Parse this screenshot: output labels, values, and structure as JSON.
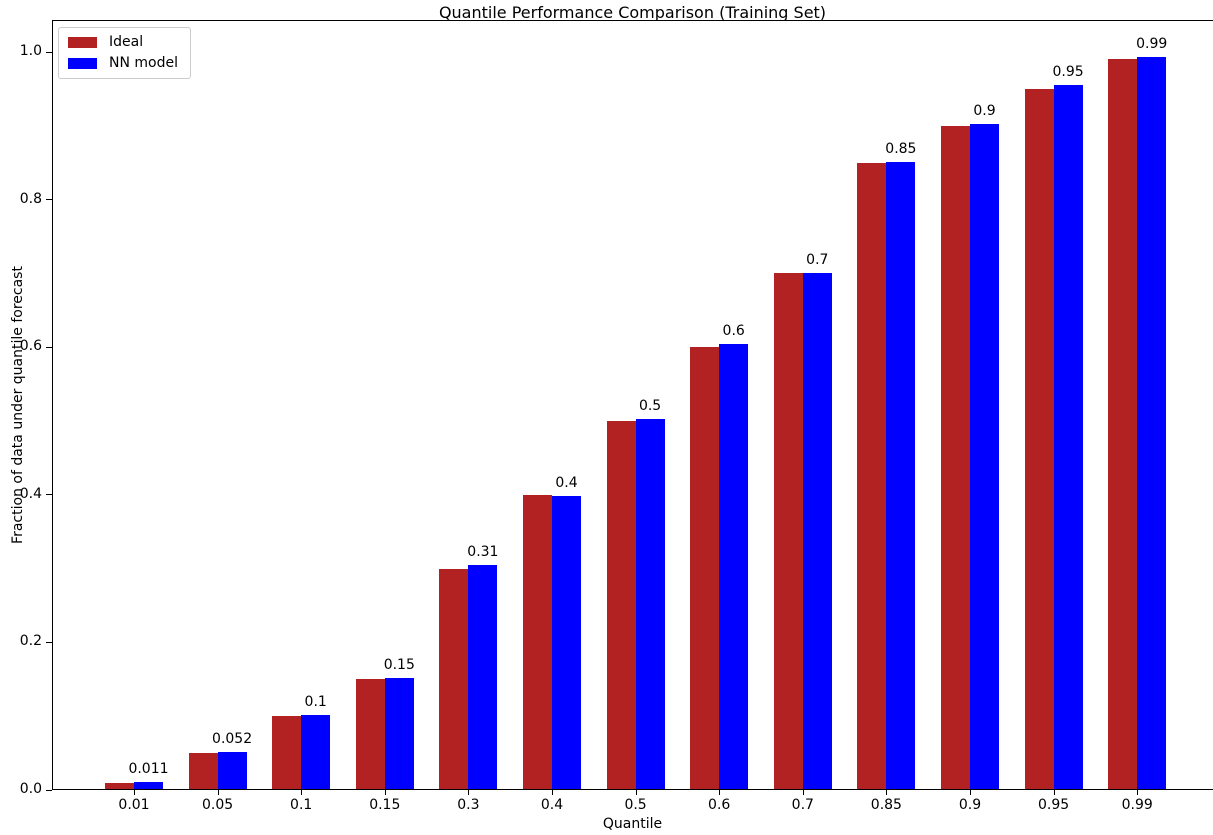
{
  "chart_data": {
    "type": "bar",
    "title": "Quantile Performance Comparison (Training Set)",
    "xlabel": "Quantile",
    "ylabel": "Fraction of data under quantile forecast",
    "categories": [
      "0.01",
      "0.05",
      "0.1",
      "0.15",
      "0.3",
      "0.4",
      "0.5",
      "0.6",
      "0.7",
      "0.85",
      "0.9",
      "0.95",
      "0.99"
    ],
    "series": [
      {
        "name": "Ideal",
        "color": "#b22222",
        "values": [
          0.01,
          0.05,
          0.1,
          0.15,
          0.3,
          0.4,
          0.5,
          0.6,
          0.7,
          0.85,
          0.9,
          0.95,
          0.99
        ]
      },
      {
        "name": "NN model",
        "color": "#0000ff",
        "values": [
          0.011,
          0.052,
          0.102,
          0.152,
          0.305,
          0.398,
          0.503,
          0.605,
          0.701,
          0.851,
          0.903,
          0.955,
          0.993
        ],
        "bar_labels": [
          "0.011",
          "0.052",
          "0.1",
          "0.15",
          "0.31",
          "0.4",
          "0.5",
          "0.6",
          "0.7",
          "0.85",
          "0.9",
          "0.95",
          "0.99"
        ]
      }
    ],
    "y_ticks": [
      "0.0",
      "0.2",
      "0.4",
      "0.6",
      "0.8",
      "1.0"
    ],
    "ylim": [
      0.0,
      1.043
    ],
    "legend_position": "upper left",
    "grid": false
  }
}
